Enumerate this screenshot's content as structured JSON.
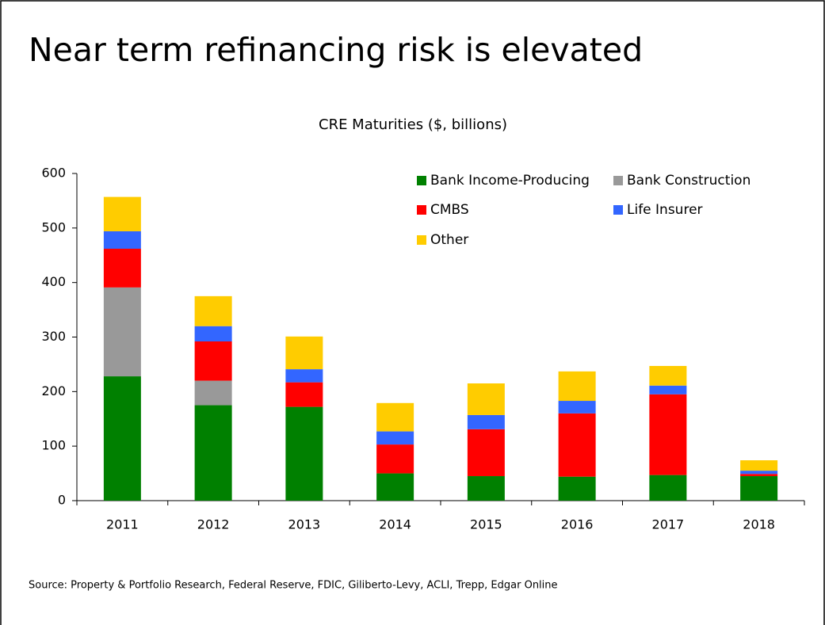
{
  "title": "Near term refinancing risk is elevated",
  "source": "Source: Property & Portfolio Research, Federal Reserve, FDIC, Giliberto-Levy, ACLI, Trepp, Edgar Online",
  "chart_data": {
    "type": "stacked_bar",
    "title": "CRE Maturities ($, billions)",
    "categories": [
      "2011",
      "2012",
      "2013",
      "2014",
      "2015",
      "2016",
      "2017",
      "2018"
    ],
    "series": [
      {
        "name": "Bank Income-Producing",
        "color": "#008000",
        "values": [
          228,
          175,
          172,
          50,
          45,
          44,
          47,
          45
        ]
      },
      {
        "name": "Bank Construction",
        "color": "#999999",
        "values": [
          163,
          45,
          0,
          0,
          0,
          0,
          0,
          0
        ]
      },
      {
        "name": "CMBS",
        "color": "#ff0000",
        "values": [
          71,
          72,
          45,
          53,
          86,
          116,
          148,
          4
        ]
      },
      {
        "name": "Life Insurer",
        "color": "#3366ff",
        "values": [
          32,
          28,
          24,
          24,
          26,
          23,
          16,
          6
        ]
      },
      {
        "name": "Other",
        "color": "#ffcc00",
        "values": [
          63,
          55,
          60,
          52,
          58,
          54,
          36,
          19
        ]
      }
    ],
    "ylim": [
      0,
      600
    ],
    "yticks": [
      0,
      100,
      200,
      300,
      400,
      500,
      600
    ],
    "legend": "top-right"
  }
}
